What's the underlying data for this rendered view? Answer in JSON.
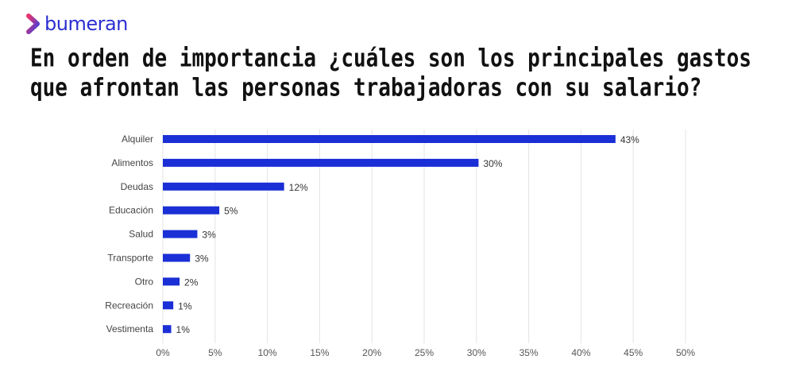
{
  "brand": {
    "name": "bumeran",
    "colors": {
      "logo_text": "#2b2fd0",
      "logo_mark_start": "#e8356d",
      "logo_mark_end": "#3b3fe0"
    }
  },
  "title_lines": [
    "En orden de importancia ¿cuáles son los principales gastos",
    "que afrontan las personas trabajadoras con su salario?"
  ],
  "chart_data": {
    "type": "bar",
    "orientation": "horizontal",
    "categories": [
      "Alquiler",
      "Alimentos",
      "Deudas",
      "Educación",
      "Salud",
      "Transporte",
      "Otro",
      "Recreación",
      "Vestimenta"
    ],
    "values": [
      43.3,
      30.2,
      11.6,
      5.4,
      3.3,
      2.6,
      1.6,
      1.0,
      0.8
    ],
    "data_labels": [
      "43%",
      "30%",
      "12%",
      "5%",
      "3%",
      "3%",
      "2%",
      "1%",
      "1%"
    ],
    "xlim": [
      0,
      50
    ],
    "xticks": [
      "0%",
      "5%",
      "10%",
      "15%",
      "20%",
      "25%",
      "30%",
      "35%",
      "40%",
      "45%",
      "50%"
    ],
    "grid": true,
    "bar_color": "#1a2fd6",
    "title": "",
    "xlabel": "",
    "ylabel": ""
  }
}
